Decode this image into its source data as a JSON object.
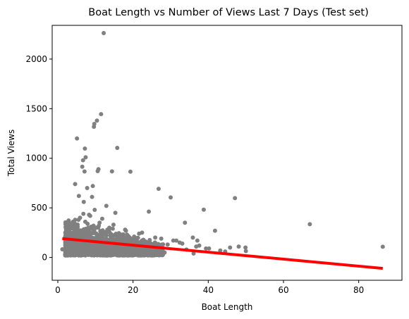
{
  "chart_data": {
    "type": "scatter",
    "title": "Boat Length vs Number of Views Last 7 Days (Test set)",
    "xlabel": "Boat Length",
    "ylabel": "Total Views",
    "xlim": [
      -1.5,
      91.5
    ],
    "ylim": [
      -230,
      2340
    ],
    "xticks": [
      0,
      20,
      40,
      60,
      80
    ],
    "yticks": [
      0,
      500,
      1000,
      1500,
      2000
    ],
    "grid": false,
    "colors": {
      "points": "#808080",
      "fit_line": "#ff0000",
      "axes": "#000000"
    },
    "series": [
      {
        "kind": "points",
        "x": [
          12.2,
          11.5,
          10.4,
          9.7,
          9.6,
          5.1,
          15.8,
          7.2,
          7.4,
          6.7,
          10.8,
          10.6,
          6.5,
          19.3,
          7.1,
          14.4,
          26.8,
          4.6,
          9.3,
          30.0,
          47.1,
          38.8,
          67.0,
          33.8,
          24.2,
          5.6,
          7.8,
          9.1,
          6.9,
          15.3,
          8.3,
          4.6,
          41.8,
          86.4,
          1.2,
          49.9,
          37.1,
          31.5,
          13.7,
          18.1,
          22.4,
          35.9,
          27.5,
          48.1,
          45.8,
          3.6,
          5.2,
          8.8,
          12.5,
          16.7,
          20.3,
          24.8,
          29.2,
          32.4,
          37.6,
          39.4,
          43.2,
          36.1,
          28.4,
          21.0,
          17.2,
          14.1,
          11.4,
          9.2,
          6.3,
          3.8,
          2.6,
          50.0,
          34.2,
          26.1,
          19.8,
          23.4,
          18.7,
          15.3,
          13.1,
          10.2,
          7.9,
          5.5,
          4.1,
          8.6,
          11.8,
          14.8,
          17.9,
          21.6,
          25.9,
          30.7,
          33.1,
          40.2,
          44.5,
          36.8,
          12.9,
          9.8,
          6.8,
          5.9,
          7.3,
          10.9,
          13.6,
          16.2,
          19.1,
          22.8,
          26.4,
          6.1,
          8.1,
          11.1,
          14.6,
          18.4,
          12.4,
          9.5,
          7.6,
          5.3,
          4.4
        ],
        "y": [
          2262,
          1445,
          1380,
          1346,
          1318,
          1200,
          1105,
          1098,
          1010,
          980,
          890,
          870,
          915,
          865,
          867,
          868,
          692,
          740,
          720,
          605,
          598,
          482,
          335,
          350,
          462,
          620,
          700,
          610,
          560,
          450,
          430,
          380,
          270,
          108,
          82,
          100,
          170,
          170,
          300,
          270,
          250,
          200,
          190,
          110,
          100,
          60,
          90,
          120,
          180,
          220,
          210,
          140,
          130,
          150,
          120,
          90,
          70,
          40,
          50,
          60,
          80,
          100,
          120,
          140,
          160,
          130,
          110,
          65,
          80,
          100,
          130,
          160,
          190,
          230,
          260,
          300,
          340,
          380,
          300,
          420,
          390,
          330,
          280,
          240,
          200,
          170,
          140,
          90,
          60,
          110,
          520,
          480,
          440,
          400,
          360,
          320,
          280,
          240,
          200,
          160,
          120,
          250,
          300,
          350,
          290,
          230,
          180,
          140,
          110,
          90,
          70
        ]
      },
      {
        "kind": "dense_cloud",
        "x_range": [
          2,
          28
        ],
        "y_range": [
          20,
          400
        ]
      },
      {
        "kind": "fit_line",
        "x": [
          1.2,
          86.4
        ],
        "y": [
          190,
          -110
        ]
      }
    ]
  }
}
